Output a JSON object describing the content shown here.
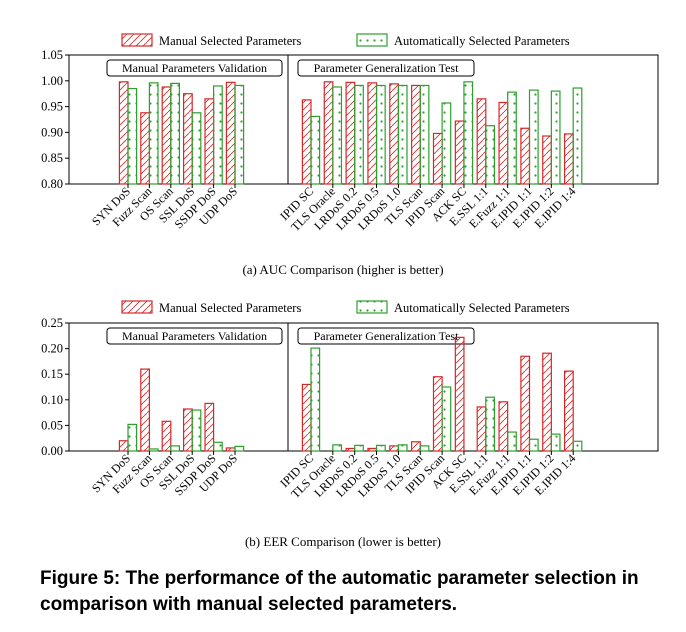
{
  "legend": {
    "manual": "Manual Selected Parameters",
    "auto": "Automatically Selected Parameters"
  },
  "colors": {
    "manual": "#d62728",
    "auto": "#2ca02c"
  },
  "figure_caption": "Figure 5: The performance of the automatic parameter selection in comparison with manual selected parameters.",
  "chart_data": [
    {
      "type": "bar",
      "caption": "(a)  AUC Comparison (higher is better)",
      "groups": [
        "Manual Parameters Validation",
        "Parameter Generalization Test"
      ],
      "categories": [
        "SYN DoS",
        "Fuzz Scan",
        "OS Scan",
        "SSL DoS",
        "SSDP DoS",
        "UDP DoS",
        "IPID SC",
        "TLS Oracle",
        "LRDoS 0.2",
        "LRDoS 0.5",
        "LRDoS 1.0",
        "TLS Scan",
        "IPID Scan",
        "ACK SC",
        "E.SSL 1:1",
        "E.Fuzz 1:1",
        "E.IPID 1:1",
        "E.IPID 1:2",
        "E.IPID 1:4"
      ],
      "series": [
        {
          "name": "Manual Selected Parameters",
          "values": [
            0.998,
            0.938,
            0.988,
            0.975,
            0.965,
            0.997,
            0.963,
            0.998,
            0.997,
            0.996,
            0.994,
            0.991,
            0.898,
            0.922,
            0.965,
            0.958,
            0.908,
            0.893,
            0.897
          ]
        },
        {
          "name": "Automatically Selected Parameters",
          "values": [
            0.985,
            0.996,
            0.995,
            0.938,
            0.99,
            0.991,
            0.931,
            0.988,
            0.991,
            0.991,
            0.991,
            0.991,
            0.957,
            0.998,
            0.913,
            0.978,
            0.982,
            0.98,
            0.986
          ]
        }
      ],
      "ylim": [
        0.8,
        1.05
      ],
      "yticks": [
        "0.80",
        "0.85",
        "0.90",
        "0.95",
        "1.00",
        "1.05"
      ]
    },
    {
      "type": "bar",
      "caption": "(b)  EER Comparison (lower is better)",
      "groups": [
        "Manual Parameters Validation",
        "Parameter Generalization Test"
      ],
      "categories": [
        "SYN DoS",
        "Fuzz Scan",
        "OS Scan",
        "SSL DoS",
        "SSDP DoS",
        "UDP DoS",
        "IPID SC",
        "TLS Oracle",
        "LRDoS 0.2",
        "LRDoS 0.5",
        "LRDoS 1.0",
        "TLS Scan",
        "IPID Scan",
        "ACK SC",
        "E.SSL 1:1",
        "E.Fuzz 1:1",
        "E.IPID 1:1",
        "E.IPID 1:2",
        "E.IPID 1:4"
      ],
      "series": [
        {
          "name": "Manual Selected Parameters",
          "values": [
            0.02,
            0.16,
            0.058,
            0.082,
            0.093,
            0.006,
            0.13,
            0.0,
            0.005,
            0.005,
            0.01,
            0.018,
            0.145,
            0.222,
            0.086,
            0.096,
            0.185,
            0.191,
            0.156
          ]
        },
        {
          "name": "Automatically Selected Parameters",
          "values": [
            0.052,
            0.004,
            0.01,
            0.08,
            0.017,
            0.009,
            0.201,
            0.012,
            0.011,
            0.011,
            0.012,
            0.01,
            0.125,
            0.0,
            0.105,
            0.037,
            0.023,
            0.033,
            0.019
          ]
        }
      ],
      "ylim": [
        0.0,
        0.25
      ],
      "yticks": [
        "0.00",
        "0.05",
        "0.10",
        "0.15",
        "0.20",
        "0.25"
      ]
    }
  ]
}
